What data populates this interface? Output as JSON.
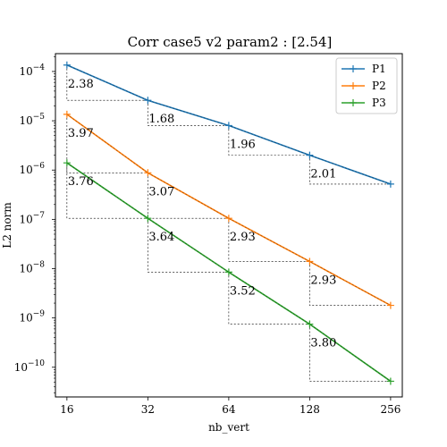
{
  "chart_data": {
    "type": "line",
    "title": "Corr case5 v2 param2 : [2.54]",
    "xlabel": "nb_vert",
    "ylabel": "L2 norm",
    "x_scale": "log2",
    "y_scale": "log10",
    "x_ticks": [
      16,
      32,
      64,
      128,
      256
    ],
    "x_tick_labels": [
      "16",
      "32",
      "64",
      "128",
      "256"
    ],
    "y_tick_exponents": [
      -4,
      -5,
      -6,
      -7,
      -8,
      -9,
      -10
    ],
    "y_tick_base": "10",
    "xlim": [
      14.5,
      283
    ],
    "ylim": [
      2.5e-11,
      0.00023
    ],
    "grid": false,
    "legend_position": "top-right",
    "x": [
      16,
      32,
      64,
      128,
      256
    ],
    "series": [
      {
        "name": "P1",
        "color": "#1f77b4",
        "values": [
          0.000135,
          2.6e-05,
          8e-06,
          2e-06,
          5.2e-07
        ],
        "rates": [
          "2.38",
          "1.68",
          "1.96",
          "2.01"
        ]
      },
      {
        "name": "P2",
        "color": "#ff7f0e",
        "values": [
          1.35e-05,
          8.8e-07,
          1.05e-07,
          1.4e-08,
          1.8e-09
        ],
        "rates": [
          "3.97",
          "3.07",
          "2.93",
          "2.93"
        ]
      },
      {
        "name": "P3",
        "color": "#2ca02c",
        "values": [
          1.4e-06,
          1.05e-07,
          8.5e-09,
          7.5e-10,
          5.2e-11
        ],
        "rates": [
          "3.76",
          "3.64",
          "3.52",
          "3.80"
        ]
      }
    ]
  }
}
